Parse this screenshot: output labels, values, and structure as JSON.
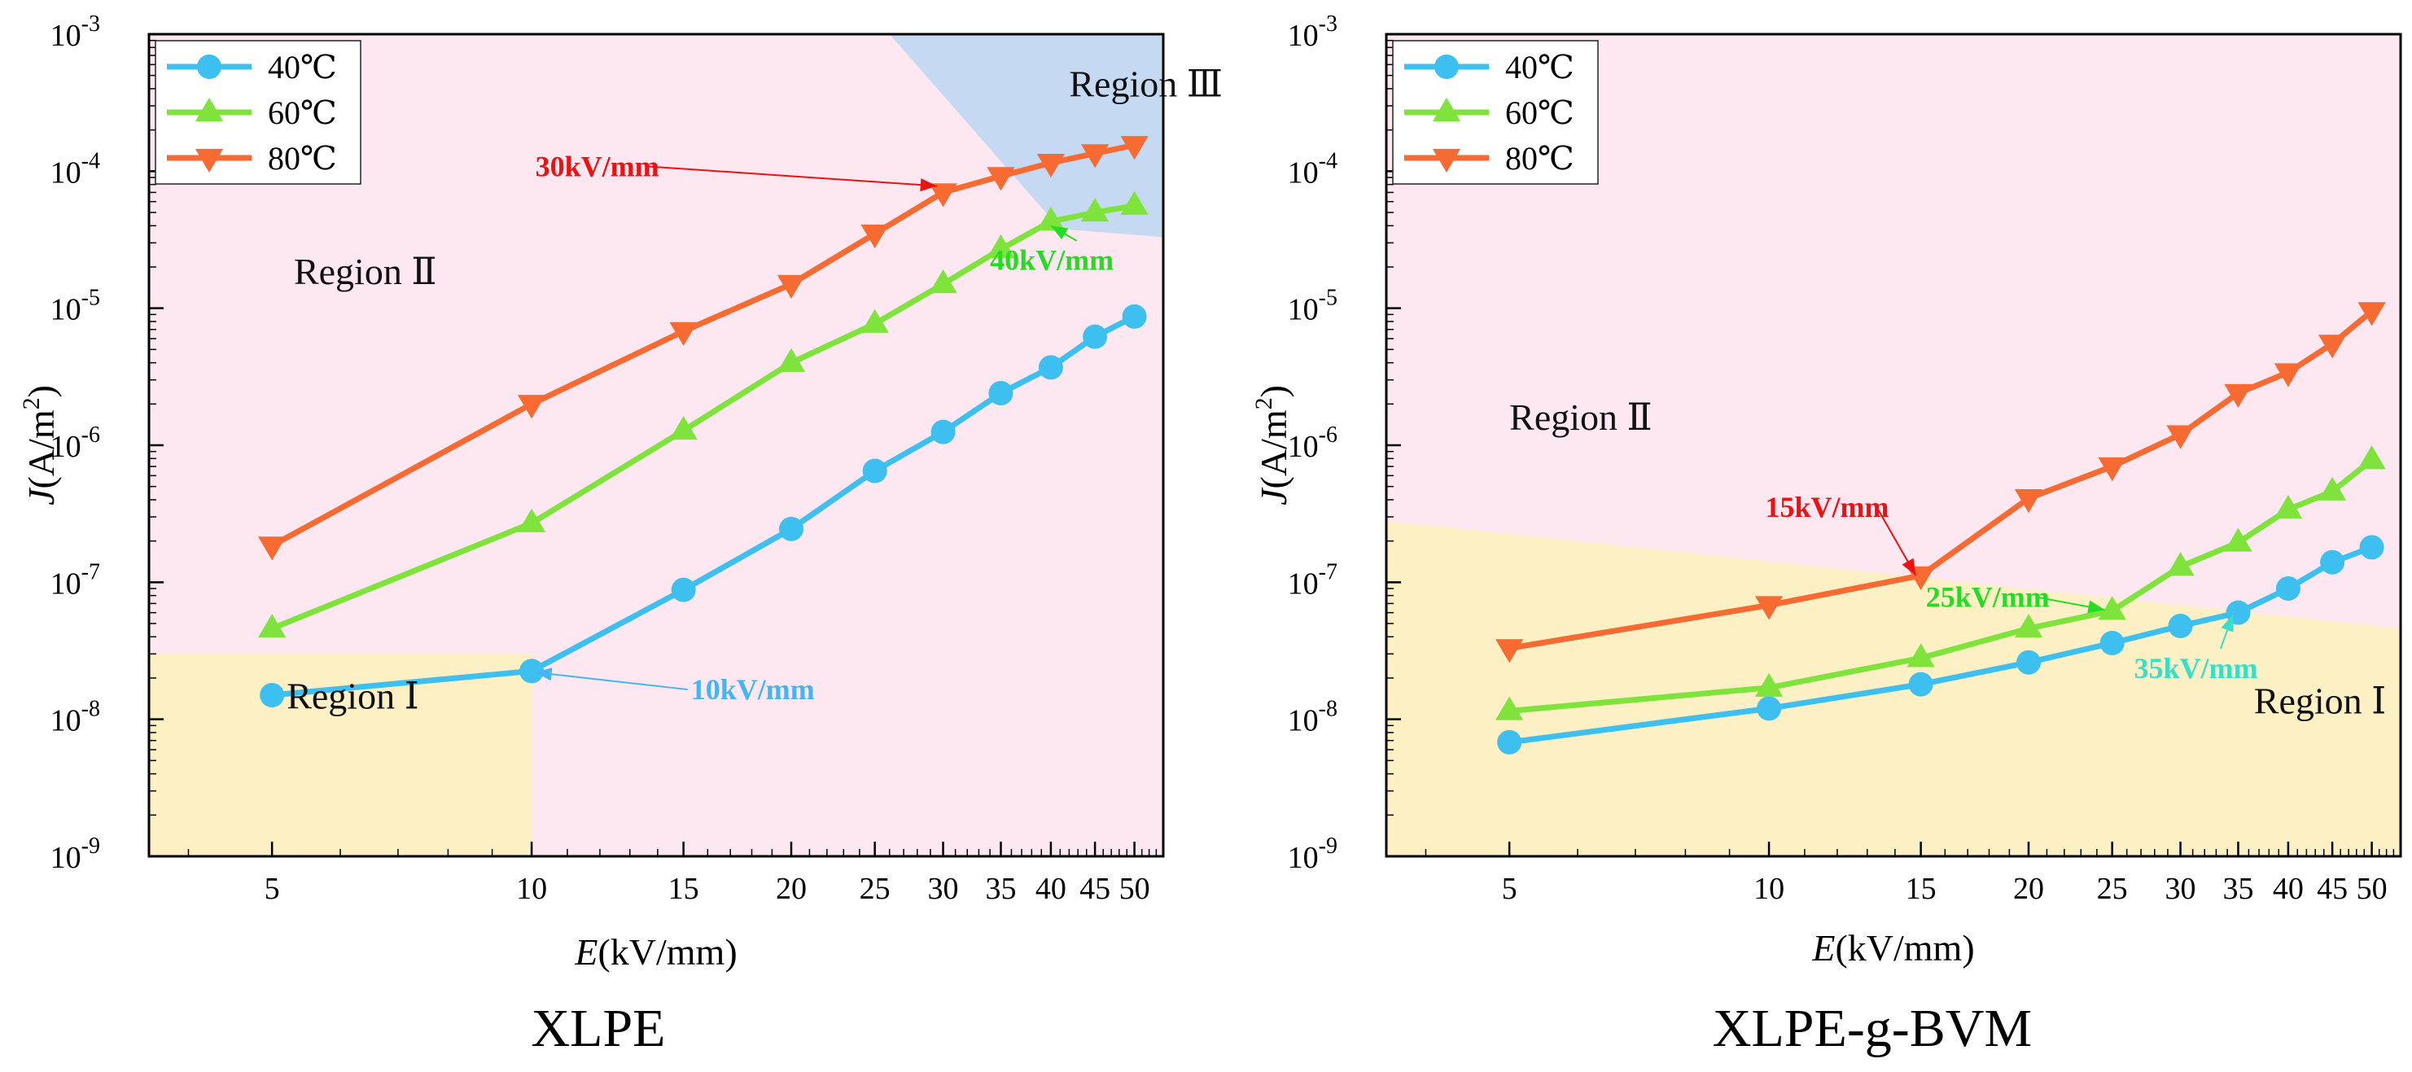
{
  "chart_data": [
    {
      "type": "line",
      "title": "XLPE",
      "xlabel_italic": "E",
      "xlabel_unit": "(kV/mm)",
      "ylabel_italic": "J",
      "ylabel_unit": "(A/m",
      "ylabel_sup": "2",
      "ylabel_close": ")",
      "xscale": "log",
      "yscale": "log",
      "xlim": [
        3.6,
        54
      ],
      "ylim": [
        1e-09,
        0.001
      ],
      "x": [
        5,
        10,
        15,
        20,
        25,
        30,
        35,
        40,
        45,
        50
      ],
      "xtick_labels": [
        "5",
        "10",
        "15",
        "20",
        "25",
        "30",
        "35",
        "40",
        "45",
        "50"
      ],
      "yticks": [
        {
          "value": 1e-09,
          "base": "10",
          "exp": "-9"
        },
        {
          "value": 1e-08,
          "base": "10",
          "exp": "-8"
        },
        {
          "value": 1e-07,
          "base": "10",
          "exp": "-7"
        },
        {
          "value": 1e-06,
          "base": "10",
          "exp": "-6"
        },
        {
          "value": 1e-05,
          "base": "10",
          "exp": "-5"
        },
        {
          "value": 0.0001,
          "base": "10",
          "exp": "-4"
        },
        {
          "value": 0.001,
          "base": "10",
          "exp": "-3"
        }
      ],
      "series": [
        {
          "name": "40℃",
          "color": "#3dc0ef",
          "marker": "circle",
          "values": [
            1.5e-08,
            2.25e-08,
            8.8e-08,
            2.45e-07,
            6.5e-07,
            1.25e-06,
            2.4e-06,
            3.7e-06,
            6.2e-06,
            8.7e-06
          ]
        },
        {
          "name": "60℃",
          "color": "#7ee33b",
          "marker": "triangle-up",
          "values": [
            4.6e-08,
            2.7e-07,
            1.28e-06,
            4e-06,
            7.7e-06,
            1.5e-05,
            2.7e-05,
            4.3e-05,
            5e-05,
            5.6e-05
          ]
        },
        {
          "name": "80℃",
          "color": "#f76b32",
          "marker": "triangle-down",
          "values": [
            1.85e-07,
            2e-06,
            6.8e-06,
            1.5e-05,
            3.5e-05,
            7e-05,
            9.2e-05,
            0.000115,
            0.000135,
            0.000155
          ]
        }
      ],
      "regions": [
        {
          "label": "Region Ⅰ",
          "color": "#fdf0c4",
          "polygon": [
            [
              3.6,
              1e-09
            ],
            [
              10,
              1e-09
            ],
            [
              10,
              3e-08
            ],
            [
              3.6,
              3e-08
            ]
          ],
          "label_at": [
            5.2,
            1.2e-08
          ]
        },
        {
          "label": "Region Ⅱ",
          "color": "#fde7f0",
          "label_at": [
            5.3,
            1.5e-05
          ]
        },
        {
          "label": "Region Ⅲ",
          "color": "#c6d9f3",
          "polygon": [
            [
              26,
              0.001
            ],
            [
              54,
              0.001
            ],
            [
              54,
              3.3e-05
            ],
            [
              41,
              3.8e-05
            ]
          ],
          "label_at": [
            42,
            0.00035
          ]
        }
      ],
      "annotations": [
        {
          "text": "30kV/mm",
          "color": "#ee1111",
          "text_at": [
            10.1,
            9.2e-05
          ],
          "point": [
            29.5,
            7.8e-05
          ]
        },
        {
          "text": "40kV/mm",
          "color": "#22dd22",
          "text_at": [
            34.0,
            1.9e-05
          ],
          "point": [
            40.0,
            4e-05
          ]
        },
        {
          "text": "10kV/mm",
          "color": "#41b6f2",
          "text_at": [
            15.3,
            1.4e-08
          ],
          "point": [
            10.1,
            2.2e-08
          ]
        }
      ],
      "legend": "top-left"
    },
    {
      "type": "line",
      "title": "XLPE-g-BVM",
      "xlabel_italic": "E",
      "xlabel_unit": "(kV/mm)",
      "ylabel_italic": "J",
      "ylabel_unit": "(A/m",
      "ylabel_sup": "2",
      "ylabel_close": ")",
      "xscale": "log",
      "yscale": "log",
      "xlim": [
        3.6,
        54
      ],
      "ylim": [
        1e-09,
        0.001
      ],
      "x": [
        5,
        10,
        15,
        20,
        25,
        30,
        35,
        40,
        45,
        50
      ],
      "xtick_labels": [
        "5",
        "10",
        "15",
        "20",
        "25",
        "30",
        "35",
        "40",
        "45",
        "50"
      ],
      "yticks": [
        {
          "value": 1e-09,
          "base": "10",
          "exp": "-9"
        },
        {
          "value": 1e-08,
          "base": "10",
          "exp": "-8"
        },
        {
          "value": 1e-07,
          "base": "10",
          "exp": "-7"
        },
        {
          "value": 1e-06,
          "base": "10",
          "exp": "-6"
        },
        {
          "value": 1e-05,
          "base": "10",
          "exp": "-5"
        },
        {
          "value": 0.0001,
          "base": "10",
          "exp": "-4"
        },
        {
          "value": 0.001,
          "base": "10",
          "exp": "-3"
        }
      ],
      "series": [
        {
          "name": "40℃",
          "color": "#3dc0ef",
          "marker": "circle",
          "values": [
            6.8e-09,
            1.2e-08,
            1.8e-08,
            2.6e-08,
            3.6e-08,
            4.8e-08,
            6e-08,
            9e-08,
            1.4e-07,
            1.8e-07
          ]
        },
        {
          "name": "60℃",
          "color": "#7ee33b",
          "marker": "triangle-up",
          "values": [
            1.15e-08,
            1.7e-08,
            2.8e-08,
            4.6e-08,
            6.2e-08,
            1.3e-07,
            1.95e-07,
            3.4e-07,
            4.6e-07,
            7.8e-07
          ]
        },
        {
          "name": "80℃",
          "color": "#f76b32",
          "marker": "triangle-down",
          "values": [
            3.3e-08,
            6.8e-08,
            1.12e-07,
            4.1e-07,
            7e-07,
            1.2e-06,
            2.4e-06,
            3.4e-06,
            5.5e-06,
            9.5e-06
          ]
        }
      ],
      "regions": [
        {
          "label": "Region Ⅰ",
          "color": "#fdf0c4",
          "polygon": [
            [
              3.6,
              1e-09
            ],
            [
              54,
              1e-09
            ],
            [
              54,
              4.6e-08
            ],
            [
              3.6,
              2.8e-07
            ]
          ],
          "label_at": [
            36.5,
            1.1e-08
          ]
        },
        {
          "label": "Region Ⅱ",
          "color": "#fde7f0",
          "label_at": [
            5.0,
            1.3e-06
          ]
        }
      ],
      "annotations": [
        {
          "text": "15kV/mm",
          "color": "#ee1111",
          "text_at": [
            9.9,
            3e-07
          ],
          "point": [
            14.8,
            1.12e-07
          ]
        },
        {
          "text": "25kV/mm",
          "color": "#22dd22",
          "text_at": [
            15.2,
            6.6e-08
          ],
          "point": [
            24.5,
            6.3e-08
          ]
        },
        {
          "text": "35kV/mm",
          "color": "#36e0c8",
          "text_at": [
            26.5,
            2e-08
          ],
          "point": [
            34.5,
            5.8e-08
          ]
        }
      ],
      "legend": "top-left"
    }
  ]
}
